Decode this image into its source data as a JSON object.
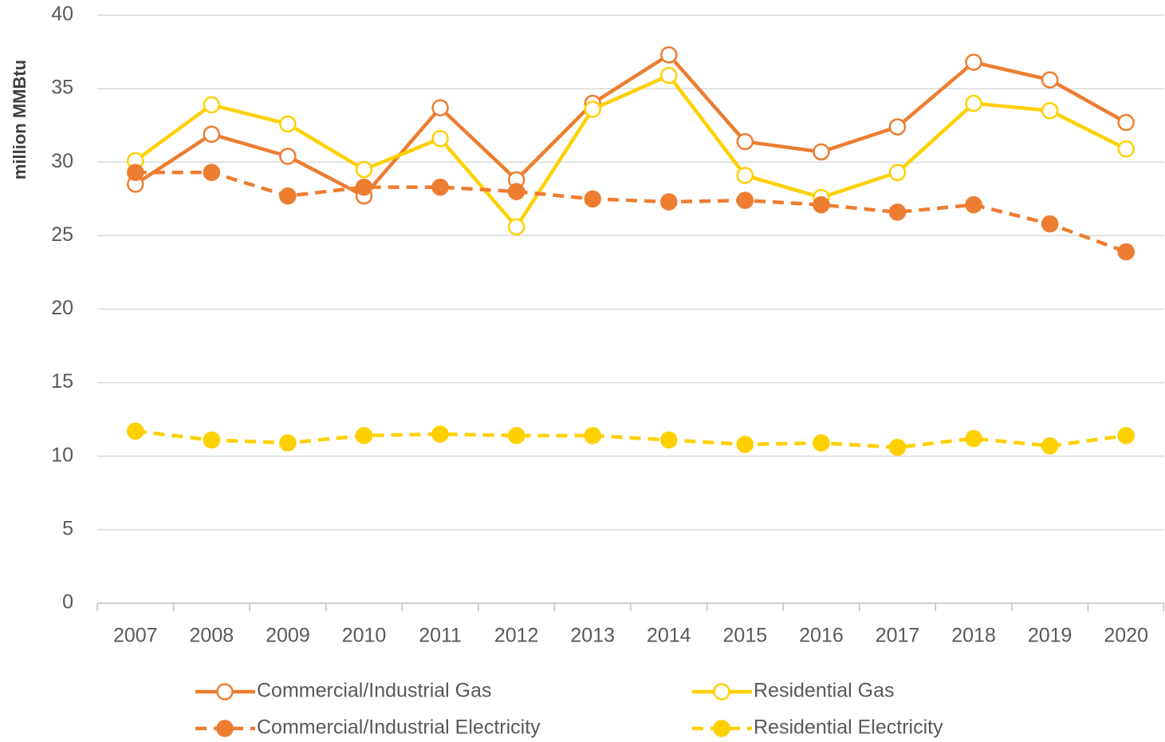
{
  "chart_data": {
    "type": "line",
    "y_label": "million MMBtu",
    "categories": [
      "2007",
      "2008",
      "2009",
      "2010",
      "2011",
      "2012",
      "2013",
      "2014",
      "2015",
      "2016",
      "2017",
      "2018",
      "2019",
      "2020"
    ],
    "series": [
      {
        "name": "Commercial/Industrial Gas",
        "color": "#ED7D31",
        "dash": false,
        "marker": "open",
        "values": [
          28.5,
          31.9,
          30.4,
          27.7,
          33.7,
          28.8,
          34.0,
          37.3,
          31.4,
          30.7,
          32.4,
          36.8,
          35.6,
          32.7
        ]
      },
      {
        "name": "Residential Gas",
        "color": "#FFD000",
        "dash": false,
        "marker": "open",
        "values": [
          30.1,
          33.9,
          32.6,
          29.5,
          31.6,
          25.6,
          33.6,
          35.9,
          29.1,
          27.6,
          29.3,
          34.0,
          33.5,
          30.9
        ]
      },
      {
        "name": "Commercial/Industrial Electricity",
        "color": "#ED7D31",
        "dash": true,
        "marker": "filled",
        "values": [
          29.3,
          29.3,
          27.7,
          28.3,
          28.3,
          28.0,
          27.5,
          27.3,
          27.4,
          27.1,
          26.6,
          27.1,
          25.8,
          23.9
        ]
      },
      {
        "name": "Residential Electricity",
        "color": "#FFD000",
        "dash": true,
        "marker": "filled",
        "values": [
          11.7,
          11.1,
          10.9,
          11.4,
          11.5,
          11.4,
          11.4,
          11.1,
          10.8,
          10.9,
          10.6,
          11.2,
          10.7,
          11.4
        ]
      }
    ],
    "ylim": [
      0,
      40
    ],
    "yticks": [
      0,
      5,
      10,
      15,
      20,
      25,
      30,
      35,
      40
    ],
    "grid": true,
    "legend": "bottom"
  }
}
